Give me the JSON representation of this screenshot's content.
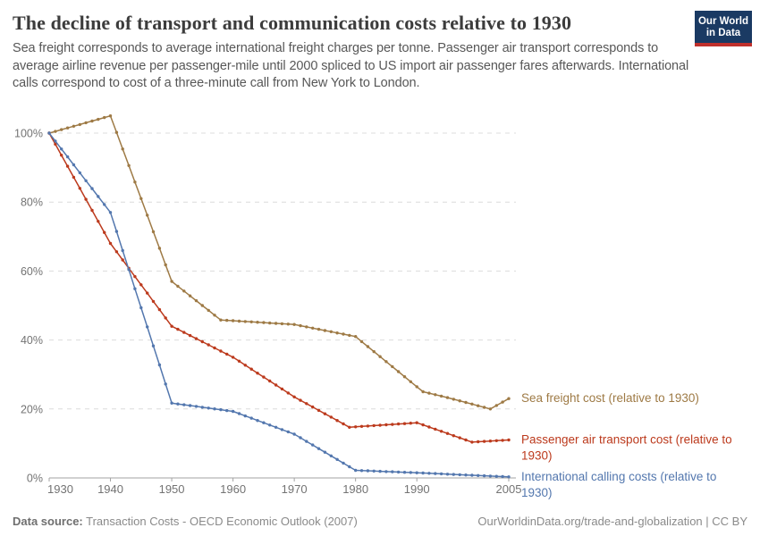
{
  "header": {
    "title": "The decline of transport and communication costs relative to 1930",
    "subtitle": "Sea freight corresponds to average international freight charges per tonne. Passenger air transport corresponds to average airline revenue per passenger-mile until 2000 spliced to US import air passenger fares afterwards. International calls correspond to cost of a three-minute call from New York to London."
  },
  "logo": {
    "line1": "Our World",
    "line2": "in Data",
    "bg_color": "#1a3a63",
    "accent_color": "#c0302c"
  },
  "footer": {
    "source_label": "Data source:",
    "source_value": "Transaction Costs - OECD Economic Outlook (2007)",
    "attribution_url": "OurWorldinData.org/trade-and-globalization",
    "license": "| CC BY"
  },
  "chart_data": {
    "type": "line",
    "title": "The decline of transport and communication costs relative to 1930",
    "xlabel": "",
    "ylabel": "",
    "unit": "% (cost relative to 1930 = 100%)",
    "xlim": [
      1930,
      2005
    ],
    "ylim": [
      0,
      106
    ],
    "x_ticks": [
      1930,
      1940,
      1950,
      1960,
      1970,
      1980,
      1990,
      2005
    ],
    "y_ticks": [
      "0%",
      "20%",
      "40%",
      "60%",
      "80%",
      "100%"
    ],
    "y_tick_values": [
      0,
      20,
      40,
      60,
      80,
      100
    ],
    "grid": "horizontal-dashed",
    "legend_position": "right-of-line-ends",
    "marker_note": "small dot markers at yearly intervals; values between anchor points are linear interpolations",
    "series": [
      {
        "id": "sea-freight",
        "name": "Sea freight",
        "label_lines": [
          "Sea freight cost (relative to 1930)"
        ],
        "color": "#9E7A45",
        "anchor_points": [
          [
            1930,
            100
          ],
          [
            1940,
            105
          ],
          [
            1950,
            57
          ],
          [
            1958,
            45.8
          ],
          [
            1970,
            44.5
          ],
          [
            1980,
            41
          ],
          [
            1991,
            25
          ],
          [
            1995,
            23.3
          ],
          [
            2002,
            20
          ],
          [
            2005,
            23
          ]
        ]
      },
      {
        "id": "passenger-air",
        "name": "Passenger air transport",
        "label_lines": [
          "Passenger air transport cost (relative to",
          "1930)"
        ],
        "color": "#BC3A1D",
        "anchor_points": [
          [
            1930,
            100
          ],
          [
            1940,
            68
          ],
          [
            1950,
            44
          ],
          [
            1960,
            35
          ],
          [
            1970,
            23.5
          ],
          [
            1979,
            14.7
          ],
          [
            1990,
            16
          ],
          [
            1999,
            10.4
          ],
          [
            2005,
            11
          ]
        ]
      },
      {
        "id": "international-calls",
        "name": "International calling costs",
        "label_lines": [
          "International calling costs (relative to",
          "1930)"
        ],
        "color": "#5377AE",
        "anchor_points": [
          [
            1930,
            100
          ],
          [
            1940,
            77
          ],
          [
            1950,
            21.7
          ],
          [
            1960,
            19.3
          ],
          [
            1970,
            12.7
          ],
          [
            1980,
            2.2
          ],
          [
            1990,
            1.5
          ],
          [
            2005,
            0.3
          ]
        ]
      }
    ]
  }
}
